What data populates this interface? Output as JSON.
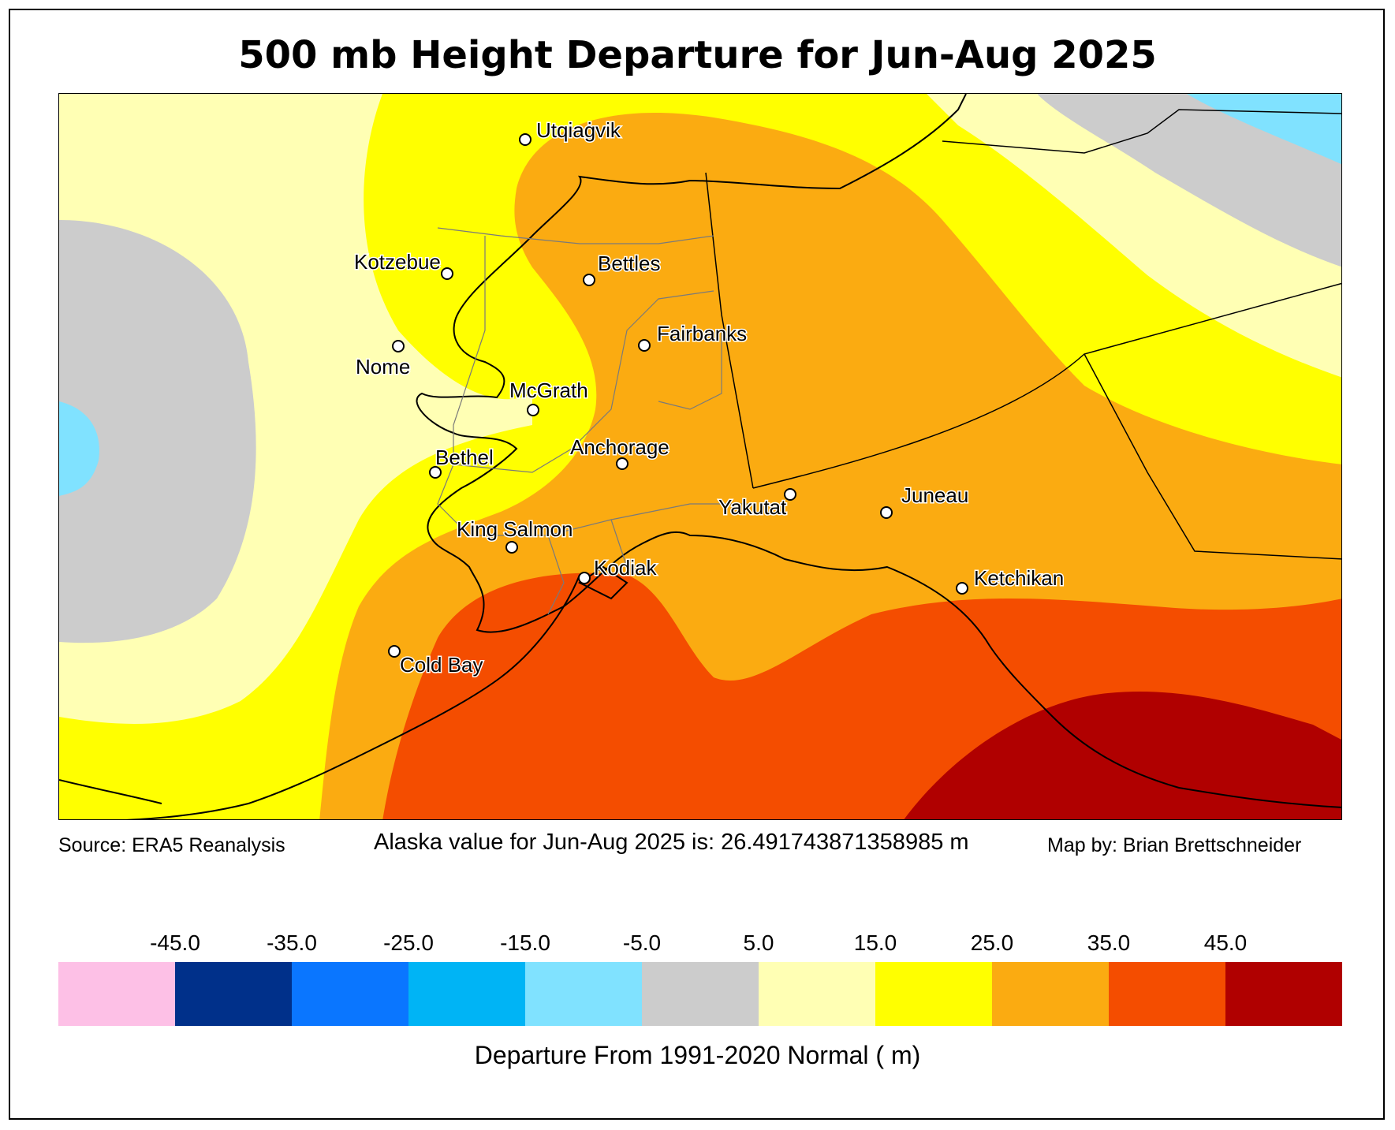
{
  "title": "500 mb Height Departure for Jun-Aug 2025",
  "footer": {
    "source": "Source: ERA5 Reanalysis",
    "statewide": "Alaska value for Jun-Aug 2025 is: 26.491743871358985 m",
    "credit": "Map by: Brian Brettschneider"
  },
  "colorbar": {
    "label": "Departure From 1991-2020 Normal ( m)",
    "ticks": [
      "-45.0",
      "-35.0",
      "-25.0",
      "-15.0",
      "-5.0",
      "5.0",
      "15.0",
      "25.0",
      "35.0",
      "45.0"
    ],
    "colors": [
      "#fdc0e6",
      "#00308a",
      "#0a76ff",
      "#00b4f5",
      "#80e2ff",
      "#cccccc",
      "#ffffb4",
      "#ffff00",
      "#fbab11",
      "#f44d00",
      "#b00000"
    ]
  },
  "cities": {
    "utqiagvik": "Utqiaġvik",
    "kotzebue": "Kotzebue",
    "bettles": "Bettles",
    "fairbanks": "Fairbanks",
    "nome": "Nome",
    "mcgrath": "McGrath",
    "bethel": "Bethel",
    "anchorage": "Anchorage",
    "yakutat": "Yakutat",
    "juneau": "Juneau",
    "king_salmon": "King Salmon",
    "kodiak": "Kodiak",
    "ketchikan": "Ketchikan",
    "cold_bay": "Cold Bay"
  }
}
